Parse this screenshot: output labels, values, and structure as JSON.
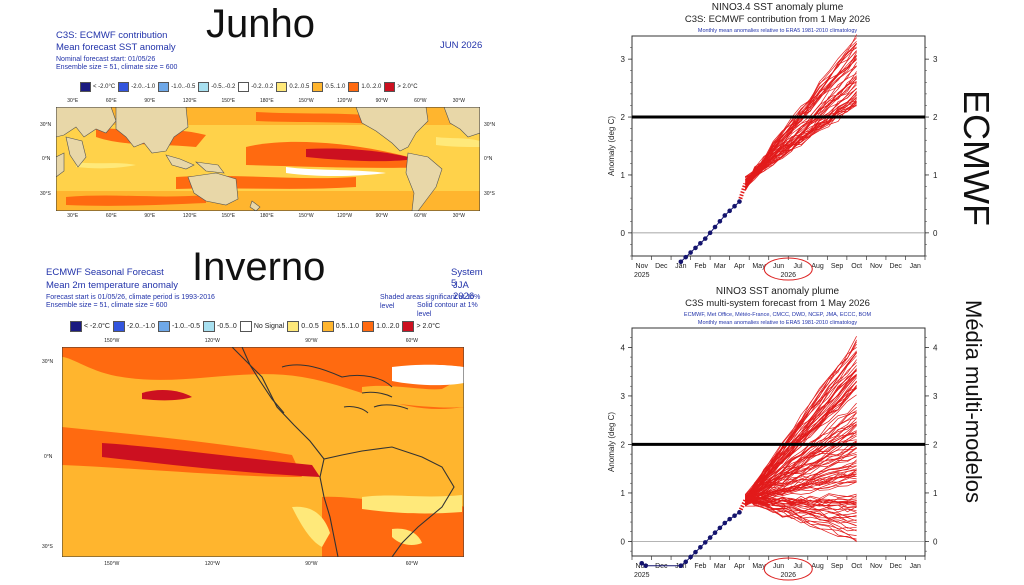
{
  "slide": {
    "label_junho": "Junho",
    "label_inverno": "Inverno",
    "label_ecmwf": "ECMWF",
    "label_multi": "Média multi-modelos"
  },
  "map1": {
    "title_lines": [
      "C3S: ECMWF contribution",
      "Mean forecast SST anomaly"
    ],
    "sub_lines": [
      "Nominal forecast start: 01/05/26",
      "Ensemble size = 51, climate size = 600"
    ],
    "period": "JUN 2026",
    "legend": [
      {
        "label": "< -2.0°C",
        "color": "#1a1a80"
      },
      {
        "label": "-2.0..-1.0",
        "color": "#3355dd"
      },
      {
        "label": "-1.0..-0.5",
        "color": "#6fa8e8"
      },
      {
        "label": "-0.5..-0.2",
        "color": "#a8e0f0"
      },
      {
        "label": "-0.2..0.2",
        "color": "#ffffff"
      },
      {
        "label": "0.2..0.5",
        "color": "#ffe97a"
      },
      {
        "label": "0.5..1.0",
        "color": "#ffb52e"
      },
      {
        "label": "1.0..2.0",
        "color": "#ff6a10"
      },
      {
        "label": "> 2.0°C",
        "color": "#cc1020"
      }
    ],
    "lon_labels": [
      "30°E",
      "60°E",
      "90°E",
      "120°E",
      "150°E",
      "180°E",
      "150°W",
      "120°W",
      "90°W",
      "60°W",
      "30°W"
    ],
    "lat_labels_left": [
      "30°N",
      "0°N",
      "30°S"
    ],
    "lat_labels_right": [
      "30°N",
      "0°N",
      "30°S"
    ]
  },
  "map2": {
    "title_lines": [
      "ECMWF Seasonal Forecast",
      "Mean 2m temperature anomaly"
    ],
    "sub_lines": [
      "Forecast start is 01/05/26, climate period is 1993-2016",
      "Ensemble size = 51, climate size = 600"
    ],
    "system": "System 5",
    "period": "JJA 2026",
    "notes": [
      "Shaded areas significant at 10% level",
      "Solid contour at 1% level"
    ],
    "legend": [
      {
        "label": "< -2.0°C",
        "color": "#1a1a80"
      },
      {
        "label": "-2.0..-1.0",
        "color": "#3355dd"
      },
      {
        "label": "-1.0..-0.5",
        "color": "#6fa8e8"
      },
      {
        "label": "-0.5..0",
        "color": "#a8e0f0"
      },
      {
        "label": "No Signal",
        "color": "#ffffff"
      },
      {
        "label": "0..0.5",
        "color": "#ffe97a"
      },
      {
        "label": "0.5..1.0",
        "color": "#ffb52e"
      },
      {
        "label": "1.0..2.0",
        "color": "#ff6a10"
      },
      {
        "label": "> 2.0°C",
        "color": "#cc1020"
      }
    ],
    "lon_labels": [
      "150°W",
      "120°W",
      "90°W",
      "60°W"
    ],
    "lat_labels": [
      "30°N",
      "0°N",
      "30°S"
    ]
  },
  "chart_data": [
    {
      "type": "line",
      "title": "NINO3.4 SST anomaly plume",
      "subtitle": "C3S: ECMWF contribution from 1 May 2026",
      "note": "Monthly mean anomalies relative to ERA5 1981-2010 climatology",
      "ylabel": "Anomaly (deg C)",
      "ylim": [
        -0.4,
        3.4
      ],
      "yticks": [
        0,
        1,
        2,
        3
      ],
      "x_labels": [
        "Nov",
        "Dec",
        "Jan",
        "Feb",
        "Mar",
        "Apr",
        "May",
        "Jun",
        "Jul",
        "Aug",
        "Sep",
        "Oct",
        "Nov",
        "Dec",
        "Jan"
      ],
      "year_labels": [
        {
          "label": "2025",
          "at": "Nov"
        },
        {
          "label": "2026",
          "at": "Jun-Jul"
        }
      ],
      "threshold": 2.0,
      "observed": {
        "x": [
          2.0,
          2.25,
          2.5,
          2.75,
          3.0,
          3.25,
          3.5,
          3.75,
          4.0,
          4.25,
          4.5,
          4.75,
          5.0
        ],
        "y": [
          -0.5,
          -0.42,
          -0.34,
          -0.26,
          -0.18,
          -0.1,
          0.0,
          0.1,
          0.2,
          0.3,
          0.38,
          0.46,
          0.54
        ]
      },
      "ensemble": {
        "members": 51,
        "start_x": 5.3,
        "start_y": 0.85,
        "end_x": 11.0,
        "end_min": 2.2,
        "end_max": 3.4
      },
      "circle_label": "2026"
    },
    {
      "type": "line",
      "title": "NINO3 SST anomaly plume",
      "subtitle": "C3S multi-system forecast from 1 May 2026",
      "note_lines": [
        "ECMWF, Met Office, Météo-France, CMCC, DWD, NCEP, JMA, ECCC, BOM",
        "Monthly mean anomalies relative to ERA5 1981-2010 climatology"
      ],
      "ylabel": "Anomaly (deg C)",
      "ylim": [
        -0.3,
        4.4
      ],
      "yticks": [
        0,
        1,
        2,
        3,
        4
      ],
      "x_labels": [
        "Nov",
        "Dec",
        "Jan",
        "Feb",
        "Mar",
        "Apr",
        "May",
        "Jun",
        "Jul",
        "Aug",
        "Sep",
        "Oct",
        "Nov",
        "Dec",
        "Jan"
      ],
      "year_labels": [
        {
          "label": "2025",
          "at": "Nov"
        },
        {
          "label": "2026",
          "at": "Jun-Jul"
        }
      ],
      "threshold": 2.0,
      "observed": {
        "x": [
          0.0,
          0.2,
          2.0,
          2.25,
          2.5,
          2.75,
          3.0,
          3.25,
          3.5,
          3.75,
          4.0,
          4.25,
          4.5,
          4.75,
          5.0
        ],
        "y": [
          -0.45,
          -0.5,
          -0.5,
          -0.42,
          -0.32,
          -0.22,
          -0.12,
          -0.02,
          0.08,
          0.18,
          0.28,
          0.38,
          0.46,
          0.53,
          0.6
        ]
      },
      "ensemble": {
        "members": 120,
        "start_x": 5.3,
        "start_y": 0.85,
        "end_x": 11.0,
        "end_min": 0.0,
        "end_max": 4.2
      },
      "circle_label": "2026"
    }
  ]
}
